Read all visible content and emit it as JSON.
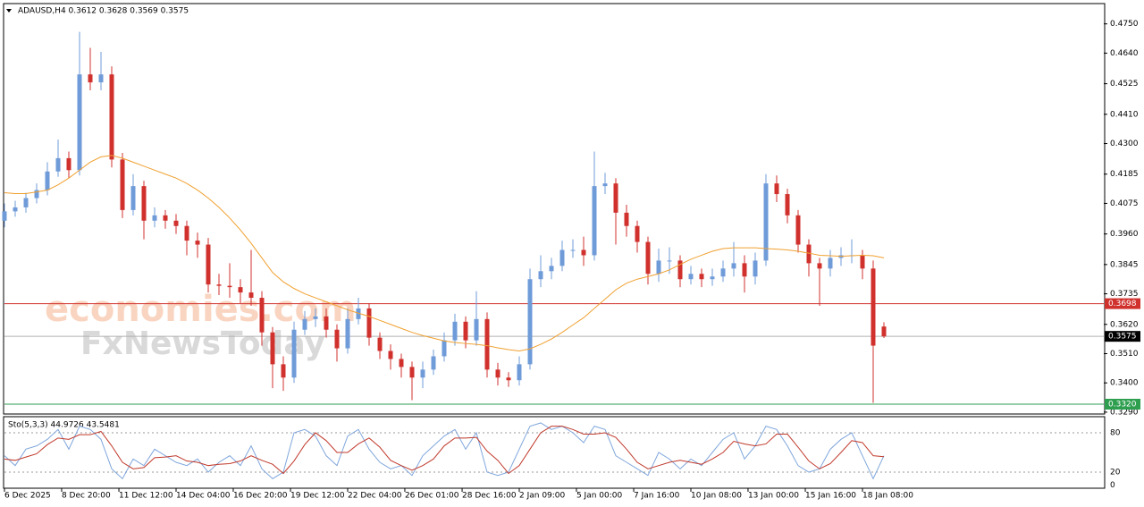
{
  "chart_data": [
    {
      "type": "candlestick",
      "title": "ADAUSD,H4 0.3612 0.3628 0.3569 0.3575",
      "up_color": "#6f9bd8",
      "down_color": "#d0312d",
      "open": [
        0.401,
        0.4045,
        0.406,
        0.4095,
        0.4125,
        0.4195,
        0.4245,
        0.42,
        0.456,
        0.453,
        0.456,
        0.424,
        0.405,
        0.414,
        0.401,
        0.403,
        0.401,
        0.399,
        0.3935,
        0.392,
        0.377,
        0.3765,
        0.376,
        0.374,
        0.372,
        0.359,
        0.347,
        0.342,
        0.36,
        0.364,
        0.365,
        0.36,
        0.353,
        0.364,
        0.368,
        0.357,
        0.352,
        0.349,
        0.346,
        0.342,
        0.345,
        0.35,
        0.356,
        0.363,
        0.356,
        0.364,
        0.345,
        0.342,
        0.341,
        0.347,
        0.379,
        0.382,
        0.384,
        0.39,
        0.39,
        0.388,
        0.414,
        0.415,
        0.404,
        0.399,
        0.393,
        0.381,
        0.386,
        0.386,
        0.379,
        0.381,
        0.379,
        0.38,
        0.383,
        0.385,
        0.38,
        0.386,
        0.415,
        0.411,
        0.403,
        0.392,
        0.385,
        0.383,
        0.387,
        0.388,
        0.388,
        0.383,
        0.3612
      ],
      "high": [
        0.4075,
        0.4085,
        0.4115,
        0.415,
        0.423,
        0.4315,
        0.427,
        0.472,
        0.466,
        0.4645,
        0.459,
        0.4265,
        0.4185,
        0.416,
        0.406,
        0.405,
        0.4035,
        0.401,
        0.3965,
        0.3945,
        0.381,
        0.385,
        0.379,
        0.39,
        0.3745,
        0.361,
        0.35,
        0.363,
        0.367,
        0.368,
        0.368,
        0.362,
        0.368,
        0.372,
        0.37,
        0.359,
        0.3545,
        0.351,
        0.348,
        0.348,
        0.3525,
        0.359,
        0.366,
        0.365,
        0.3745,
        0.3665,
        0.3475,
        0.344,
        0.35,
        0.383,
        0.388,
        0.387,
        0.3935,
        0.394,
        0.395,
        0.427,
        0.419,
        0.417,
        0.407,
        0.401,
        0.395,
        0.3905,
        0.391,
        0.388,
        0.384,
        0.383,
        0.383,
        0.386,
        0.393,
        0.388,
        0.389,
        0.4185,
        0.418,
        0.413,
        0.405,
        0.394,
        0.387,
        0.39,
        0.391,
        0.394,
        0.39,
        0.386,
        0.3628
      ],
      "low": [
        0.3985,
        0.4025,
        0.404,
        0.4075,
        0.4105,
        0.4175,
        0.417,
        0.418,
        0.45,
        0.45,
        0.421,
        0.402,
        0.403,
        0.394,
        0.3985,
        0.398,
        0.396,
        0.388,
        0.387,
        0.374,
        0.373,
        0.372,
        0.37,
        0.369,
        0.354,
        0.338,
        0.337,
        0.34,
        0.358,
        0.361,
        0.357,
        0.348,
        0.351,
        0.362,
        0.354,
        0.349,
        0.345,
        0.342,
        0.3335,
        0.338,
        0.343,
        0.348,
        0.354,
        0.353,
        0.354,
        0.342,
        0.339,
        0.3385,
        0.339,
        0.345,
        0.376,
        0.379,
        0.382,
        0.387,
        0.384,
        0.386,
        0.411,
        0.392,
        0.395,
        0.389,
        0.377,
        0.378,
        0.381,
        0.376,
        0.377,
        0.376,
        0.3765,
        0.378,
        0.38,
        0.374,
        0.377,
        0.384,
        0.408,
        0.4,
        0.389,
        0.38,
        0.369,
        0.38,
        0.384,
        0.385,
        0.379,
        0.3325,
        0.3569
      ],
      "close": [
        0.4045,
        0.406,
        0.4095,
        0.4125,
        0.4195,
        0.4245,
        0.42,
        0.456,
        0.453,
        0.456,
        0.424,
        0.405,
        0.414,
        0.401,
        0.403,
        0.401,
        0.399,
        0.3935,
        0.392,
        0.377,
        0.3765,
        0.376,
        0.374,
        0.372,
        0.359,
        0.347,
        0.342,
        0.36,
        0.364,
        0.365,
        0.36,
        0.353,
        0.364,
        0.368,
        0.357,
        0.352,
        0.349,
        0.346,
        0.342,
        0.345,
        0.35,
        0.356,
        0.363,
        0.356,
        0.364,
        0.345,
        0.342,
        0.341,
        0.347,
        0.379,
        0.382,
        0.384,
        0.39,
        0.39,
        0.388,
        0.414,
        0.415,
        0.404,
        0.399,
        0.393,
        0.381,
        0.386,
        0.386,
        0.379,
        0.381,
        0.379,
        0.38,
        0.383,
        0.385,
        0.38,
        0.386,
        0.415,
        0.411,
        0.403,
        0.392,
        0.385,
        0.383,
        0.387,
        0.388,
        0.388,
        0.383,
        0.354,
        0.3575
      ],
      "moving_average": {
        "color": "#f0a030",
        "values": [
          0.4115,
          0.4112,
          0.4112,
          0.4118,
          0.4125,
          0.4145,
          0.417,
          0.42,
          0.423,
          0.425,
          0.4255,
          0.4245,
          0.423,
          0.4215,
          0.42,
          0.4185,
          0.417,
          0.415,
          0.4125,
          0.4095,
          0.406,
          0.402,
          0.3975,
          0.3925,
          0.387,
          0.3815,
          0.378,
          0.3755,
          0.3735,
          0.372,
          0.3705,
          0.369,
          0.3675,
          0.3662,
          0.365,
          0.3635,
          0.362,
          0.3605,
          0.359,
          0.3578,
          0.3568,
          0.3558,
          0.3552,
          0.3548,
          0.3545,
          0.354,
          0.3532,
          0.3525,
          0.352,
          0.3528,
          0.3545,
          0.3565,
          0.359,
          0.3618,
          0.3645,
          0.368,
          0.3715,
          0.375,
          0.3775,
          0.379,
          0.38,
          0.381,
          0.3825,
          0.3845,
          0.3865,
          0.388,
          0.3895,
          0.3905,
          0.3908,
          0.3908,
          0.3908,
          0.3905,
          0.3903,
          0.39,
          0.3895,
          0.3888,
          0.388,
          0.3878,
          0.3876,
          0.3878,
          0.388,
          0.3878,
          0.387
        ]
      },
      "levels": [
        {
          "value": 0.3698,
          "color": "#d0312d"
        },
        {
          "value": 0.3575,
          "color": "#000000",
          "line_color": "#b0b0b0"
        },
        {
          "value": 0.332,
          "label": "0.3320",
          "color": "#2e9e4f"
        }
      ],
      "xlim": [
        0,
        102.5
      ],
      "ylim": [
        0.3283,
        0.4823
      ],
      "yticks": [
        {
          "value": 0.475,
          "label": "0.4750"
        },
        {
          "value": 0.464,
          "label": "0.4640"
        },
        0.4525,
        {
          "value": 0.441,
          "label": "0.4410"
        },
        {
          "value": 0.43,
          "label": "0.4300"
        },
        0.4185,
        0.4075,
        {
          "value": 0.396,
          "label": "0.3960"
        },
        0.3845,
        0.3735,
        {
          "value": 0.362,
          "label": "0.3620"
        },
        {
          "value": 0.351,
          "label": "0.3510"
        },
        {
          "value": 0.34,
          "label": "0.3400"
        },
        {
          "value": 0.329,
          "label": "0.3290"
        }
      ],
      "watermarks": [
        "economies.com",
        "FxNewsToday"
      ]
    },
    {
      "type": "line",
      "title": "Sto(5,3,3) 44.9726 43.5481",
      "series": [
        {
          "color": "#7fa6dc",
          "values": [
            45,
            30,
            55,
            60,
            70,
            85,
            55,
            90,
            85,
            70,
            25,
            10,
            40,
            30,
            55,
            45,
            35,
            30,
            40,
            20,
            35,
            45,
            30,
            60,
            25,
            10,
            20,
            80,
            85,
            75,
            45,
            30,
            75,
            85,
            55,
            35,
            25,
            30,
            15,
            45,
            60,
            75,
            85,
            55,
            80,
            20,
            15,
            20,
            55,
            90,
            95,
            85,
            90,
            80,
            65,
            90,
            85,
            45,
            35,
            25,
            15,
            50,
            40,
            25,
            40,
            30,
            50,
            70,
            80,
            40,
            60,
            90,
            85,
            60,
            30,
            20,
            25,
            55,
            70,
            80,
            45,
            10,
            44.9726
          ]
        },
        {
          "color": "#c0392b",
          "values": [
            40,
            38,
            43,
            48,
            62,
            72,
            70,
            77,
            77,
            82,
            60,
            35,
            25,
            27,
            42,
            43,
            45,
            37,
            35,
            30,
            32,
            33,
            37,
            45,
            38,
            32,
            18,
            37,
            62,
            80,
            68,
            50,
            50,
            63,
            72,
            58,
            38,
            30,
            23,
            30,
            40,
            60,
            72,
            72,
            73,
            52,
            38,
            18,
            30,
            55,
            80,
            90,
            90,
            85,
            78,
            78,
            80,
            73,
            55,
            35,
            25,
            30,
            35,
            38,
            35,
            32,
            40,
            50,
            67,
            63,
            60,
            63,
            78,
            78,
            58,
            37,
            25,
            33,
            50,
            68,
            65,
            45,
            43.5481
          ]
        }
      ],
      "xlim": [
        0,
        102.5
      ],
      "ylim": [
        0,
        100
      ],
      "yticks": [
        80,
        20,
        0
      ],
      "xticks": [
        {
          "value": 0,
          "label": "6 Dec 2025"
        },
        {
          "value": 5.33,
          "label": "8 Dec 20:00"
        },
        {
          "value": 10.67,
          "label": "11 Dec 12:00"
        },
        {
          "value": 16,
          "label": "14 Dec 04:00"
        },
        {
          "value": 21.33,
          "label": "16 Dec 20:00"
        },
        {
          "value": 26.67,
          "label": "19 Dec 12:00"
        },
        {
          "value": 32,
          "label": "22 Dec 04:00"
        },
        {
          "value": 37.33,
          "label": "26 Dec 01:00"
        },
        {
          "value": 42.67,
          "label": "28 Dec 16:00"
        },
        {
          "value": 48,
          "label": "2 Jan 09:00"
        },
        {
          "value": 53.33,
          "label": "5 Jan 00:00"
        },
        {
          "value": 58.67,
          "label": "7 Jan 16:00"
        },
        {
          "value": 64,
          "label": "10 Jan 08:00"
        },
        {
          "value": 69.33,
          "label": "13 Jan 00:00"
        },
        {
          "value": 74.67,
          "label": "15 Jan 16:00"
        },
        {
          "value": 80,
          "label": "18 Jan 08:00"
        }
      ]
    }
  ]
}
